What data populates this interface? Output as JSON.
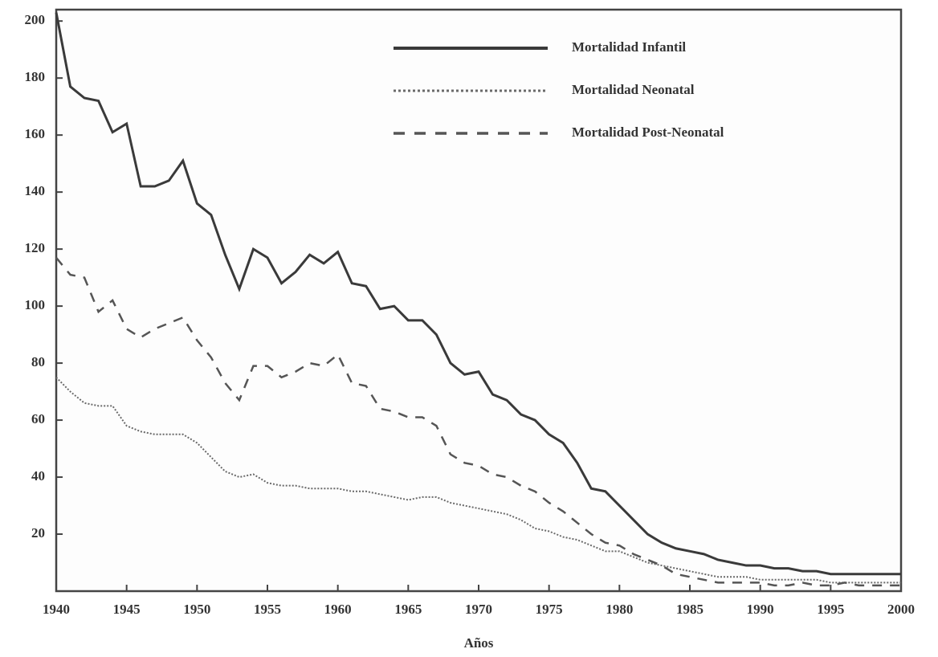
{
  "chart_data": {
    "type": "line",
    "x_label": "Años",
    "x": [
      1940,
      1941,
      1942,
      1943,
      1944,
      1945,
      1946,
      1947,
      1948,
      1949,
      1950,
      1951,
      1952,
      1953,
      1954,
      1955,
      1956,
      1957,
      1958,
      1959,
      1960,
      1961,
      1962,
      1963,
      1964,
      1965,
      1966,
      1967,
      1968,
      1969,
      1970,
      1971,
      1972,
      1973,
      1974,
      1975,
      1976,
      1977,
      1978,
      1979,
      1980,
      1981,
      1982,
      1983,
      1984,
      1985,
      1986,
      1987,
      1988,
      1989,
      1990,
      1991,
      1992,
      1993,
      1994,
      1995,
      1996,
      1997,
      1998,
      1999,
      2000
    ],
    "series": [
      {
        "name": "Mortalidad Infantil",
        "color": "#3a3a3a",
        "style": "solid",
        "values": [
          203,
          177,
          173,
          172,
          161,
          164,
          142,
          142,
          144,
          151,
          136,
          132,
          118,
          106,
          120,
          117,
          108,
          112,
          118,
          115,
          119,
          108,
          107,
          99,
          100,
          95,
          95,
          90,
          80,
          76,
          77,
          69,
          67,
          62,
          60,
          55,
          52,
          45,
          36,
          35,
          30,
          25,
          20,
          17,
          15,
          14,
          13,
          11,
          10,
          9,
          9,
          8,
          8,
          7,
          7,
          6,
          6,
          6,
          6,
          6,
          6
        ]
      },
      {
        "name": "Mortalidad Neonatal",
        "color": "#6a6a6a",
        "style": "dotted",
        "values": [
          75,
          70,
          66,
          65,
          65,
          58,
          56,
          55,
          55,
          55,
          52,
          47,
          42,
          40,
          41,
          38,
          37,
          37,
          36,
          36,
          36,
          35,
          35,
          34,
          33,
          32,
          33,
          33,
          31,
          30,
          29,
          28,
          27,
          25,
          22,
          21,
          19,
          18,
          16,
          14,
          14,
          12,
          10,
          9,
          8,
          7,
          6,
          5,
          5,
          5,
          4,
          4,
          4,
          4,
          4,
          3,
          3,
          3,
          3,
          3,
          3
        ]
      },
      {
        "name": "Mortalidad Post-Neonatal",
        "color": "#555555",
        "style": "dashed",
        "values": [
          117,
          111,
          110,
          98,
          102,
          92,
          89,
          92,
          94,
          96,
          88,
          82,
          73,
          67,
          79,
          79,
          75,
          77,
          80,
          79,
          83,
          73,
          72,
          64,
          63,
          61,
          61,
          58,
          48,
          45,
          44,
          41,
          40,
          37,
          35,
          31,
          28,
          24,
          20,
          17,
          16,
          13,
          11,
          9,
          6,
          5,
          4,
          3,
          3,
          3,
          3,
          2,
          2,
          3,
          2,
          2,
          3,
          2,
          2,
          2,
          2
        ]
      }
    ],
    "xlim": [
      1940,
      2000
    ],
    "xticks": [
      1940,
      1945,
      1950,
      1955,
      1960,
      1965,
      1970,
      1975,
      1980,
      1985,
      1990,
      1995,
      2000
    ],
    "ylim": [
      0,
      204
    ],
    "yticks": [
      20,
      40,
      60,
      80,
      100,
      120,
      140,
      160,
      180,
      200
    ],
    "legend": "upper right"
  }
}
